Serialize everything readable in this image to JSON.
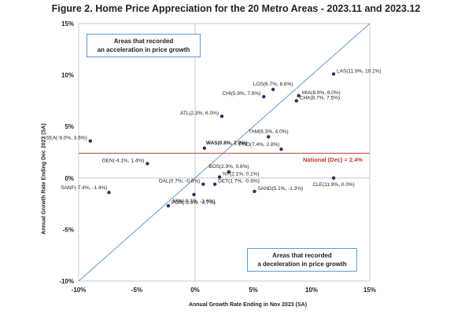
{
  "chart_data": {
    "type": "scatter",
    "title": "Figure 2. Home Price Appreciation  for the 20 Metro Areas - 2023.11 and 2023.12",
    "xlabel": "Annual Growth Rate Ending in Nov 2023 (SA)",
    "ylabel": "Annual Growth Rate Ending Dec 2023 (SA)",
    "xlim": [
      -10,
      15
    ],
    "ylim": [
      -10,
      15
    ],
    "x_ticks": [
      "-10%",
      "-5%",
      "0%",
      "5%",
      "10%",
      "15%"
    ],
    "y_ticks": [
      "-10%",
      "-5%",
      "0%",
      "5%",
      "10%",
      "15%"
    ],
    "diagonal_line": true,
    "national_line": {
      "y": 2.4,
      "label": "National (Dec) = 2.4%",
      "color": "#c0392b"
    },
    "annotations": {
      "accel": [
        "Areas that recorded",
        "an acceleration in price growth"
      ],
      "decel": [
        "Areas that recorded",
        "a deceleration in price growth"
      ]
    },
    "marker_color": "#1f3864",
    "line_color": "#5b9bd5",
    "points": [
      {
        "label": "LAS(11.9%, 10.1%)",
        "x": 11.9,
        "y": 10.1,
        "pos": "right"
      },
      {
        "label": "LOS(6.7%, 8.6%)",
        "x": 6.7,
        "y": 8.6,
        "pos": "above"
      },
      {
        "label": "MIA(8.9%, 8.0%)",
        "x": 8.9,
        "y": 8.0,
        "pos": "right"
      },
      {
        "label": "CHI(5.9%, 7.9%)",
        "x": 5.9,
        "y": 7.9,
        "pos": "left"
      },
      {
        "label": "CHA(8.7%, 7.5%)",
        "x": 8.7,
        "y": 7.5,
        "pos": "right"
      },
      {
        "label": "ATL(2.3%, 6.0%)",
        "x": 2.3,
        "y": 6.0,
        "pos": "left"
      },
      {
        "label": "TAM(6.3%, 4.0%)",
        "x": 6.3,
        "y": 4.0,
        "pos": "above"
      },
      {
        "label": "SEA(-9.0%, 3.6%)",
        "x": -9.0,
        "y": 3.6,
        "pos": "left"
      },
      {
        "label": "WAS(0.8%, 2.9%)",
        "x": 0.8,
        "y": 2.9,
        "pos": "rightabove",
        "bold": true
      },
      {
        "label": "PHO(7.4%, 2.8%)",
        "x": 7.4,
        "y": 2.8,
        "pos": "leftabove"
      },
      {
        "label": "DEN(-4.1%, 1.4%)",
        "x": -4.1,
        "y": 1.4,
        "pos": "left"
      },
      {
        "label": "BOS(2.9%, 0.6%)",
        "x": 2.9,
        "y": 0.6,
        "pos": "above"
      },
      {
        "label": "NY(2.1%, 0.1%)",
        "x": 2.1,
        "y": 0.1,
        "pos": "right"
      },
      {
        "label": "DAL(0.7%, -0.6%)",
        "x": 0.7,
        "y": -0.6,
        "pos": "left"
      },
      {
        "label": "DET(1.7%, -0.6%)",
        "x": 1.7,
        "y": -0.6,
        "pos": "right"
      },
      {
        "label": "CLE(11.9%, 0.0%)",
        "x": 11.9,
        "y": 0.0,
        "pos": "below"
      },
      {
        "label": "SANF(-7.4%, -1.4%)",
        "x": -7.4,
        "y": -1.4,
        "pos": "leftabove"
      },
      {
        "label": "SAND(5.1%, -1.3%)",
        "x": 5.1,
        "y": -1.3,
        "pos": "right"
      },
      {
        "label": "MIN(-0.1%, -1.6%)",
        "x": -0.1,
        "y": -1.6,
        "pos": "below"
      },
      {
        "label": "POR(-2.3%, -2.7%)",
        "x": -2.3,
        "y": -2.7,
        "pos": "right"
      }
    ]
  }
}
